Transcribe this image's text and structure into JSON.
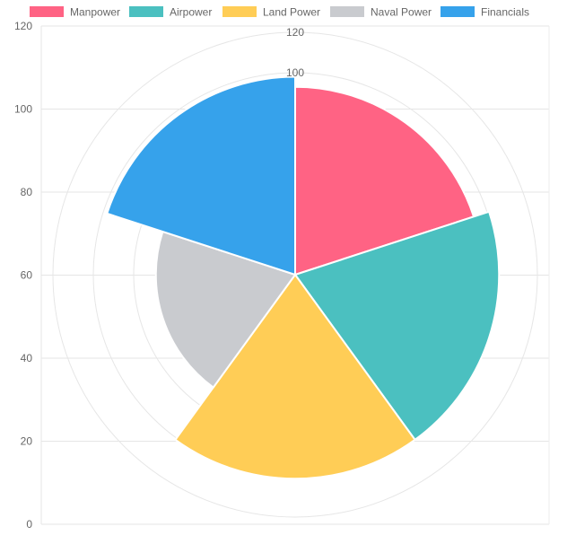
{
  "chart_data": {
    "type": "polarArea",
    "categories": [
      "Manpower",
      "Airpower",
      "Land Power",
      "Naval Power",
      "Financials"
    ],
    "values": [
      93,
      101,
      101,
      69,
      98
    ],
    "colors": [
      "#ff6384",
      "#4bc0c0",
      "#ffcd56",
      "#c9cbcf",
      "#36a2eb"
    ],
    "radial_ticks": [
      "100",
      "120"
    ],
    "radial_tick_values": [
      100,
      120
    ],
    "radial_max": 120,
    "y_ticks": [
      "0",
      "20",
      "40",
      "60",
      "80",
      "100",
      "120"
    ],
    "y_tick_values": [
      0,
      20,
      40,
      60,
      80,
      100,
      120
    ],
    "ylim": [
      0,
      120
    ],
    "grid": true,
    "legend_position": "top",
    "legend": [
      {
        "label": "Manpower",
        "color": "#ff6384"
      },
      {
        "label": "Airpower",
        "color": "#4bc0c0"
      },
      {
        "label": "Land Power",
        "color": "#ffcd56"
      },
      {
        "label": "Naval Power",
        "color": "#c9cbcf"
      },
      {
        "label": "Financials",
        "color": "#36a2eb"
      }
    ]
  }
}
